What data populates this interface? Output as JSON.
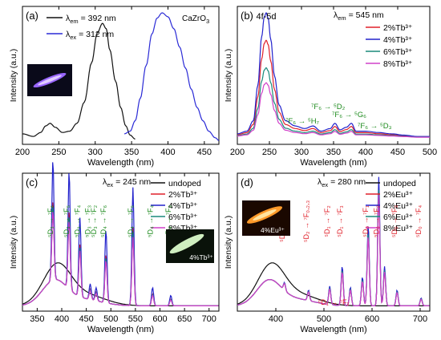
{
  "chart_data": [
    {
      "type": "line",
      "panel_label": "(a)",
      "xlabel": "Wavelength (nm)",
      "ylabel": "Intensity (a.u.)",
      "xlim": [
        200,
        470
      ],
      "xticks": [
        200,
        250,
        300,
        350,
        400,
        450
      ],
      "annotation": "CaZrO",
      "annotation_sub": "3",
      "inset_image": "rod glowing violet",
      "series": [
        {
          "name": "λem = 392 nm",
          "label_main": "λ",
          "label_sub": "em",
          "label_rest": " = 392 nm",
          "color": "#111111",
          "points": [
            [
              200,
              0.08
            ],
            [
              215,
              0.06
            ],
            [
              225,
              0.09
            ],
            [
              232,
              0.14
            ],
            [
              238,
              0.16
            ],
            [
              245,
              0.13
            ],
            [
              255,
              0.09
            ],
            [
              265,
              0.1
            ],
            [
              275,
              0.16
            ],
            [
              285,
              0.32
            ],
            [
              295,
              0.62
            ],
            [
              303,
              0.85
            ],
            [
              310,
              0.92
            ],
            [
              315,
              0.88
            ],
            [
              320,
              0.72
            ],
            [
              328,
              0.48
            ],
            [
              335,
              0.28
            ],
            [
              342,
              0.14
            ],
            [
              348,
              0.07
            ],
            [
              355,
              0.04
            ]
          ]
        },
        {
          "name": "λex = 312 nm",
          "label_main": "λ",
          "label_sub": "ex",
          "label_rest": " = 312 nm",
          "color": "#2a2ad6",
          "points": [
            [
              340,
              0.08
            ],
            [
              348,
              0.1
            ],
            [
              355,
              0.18
            ],
            [
              362,
              0.35
            ],
            [
              370,
              0.6
            ],
            [
              378,
              0.84
            ],
            [
              385,
              0.96
            ],
            [
              392,
              1.0
            ],
            [
              400,
              0.97
            ],
            [
              408,
              0.88
            ],
            [
              416,
              0.74
            ],
            [
              424,
              0.58
            ],
            [
              432,
              0.42
            ],
            [
              440,
              0.28
            ],
            [
              448,
              0.18
            ],
            [
              456,
              0.1
            ],
            [
              465,
              0.05
            ],
            [
              470,
              0.03
            ]
          ]
        }
      ]
    },
    {
      "type": "line",
      "panel_label": "(b)",
      "xlabel": "Wavelength (nm)",
      "ylabel": "Intensity (a.u.)",
      "xlim": [
        200,
        500
      ],
      "xticks": [
        200,
        250,
        300,
        350,
        400,
        450,
        500
      ],
      "legend_title_main": "λ",
      "legend_title_sub": "em",
      "legend_title_rest": " = 545 nm",
      "peak_label": "4f-5d",
      "annotations": [
        {
          "text": "⁷F₆ → ⁵D₂",
          "x": 350
        },
        {
          "text": "⁷F₆ → ⁵G₆",
          "x": 380
        },
        {
          "text": "⁷F₆ → ⁵H₇",
          "x": 320
        },
        {
          "text": "⁷F₆ → ⁵D₃",
          "x": 440
        }
      ],
      "series": [
        {
          "name": "2%Tb³⁺",
          "color": "#e0202a",
          "scale": 0.78
        },
        {
          "name": "4%Tb³⁺",
          "color": "#2222cc",
          "scale": 1.0
        },
        {
          "name": "6%Tb³⁺",
          "color": "#1a8a7a",
          "scale": 0.56
        },
        {
          "name": "8%Tb³⁺",
          "color": "#d040c8",
          "scale": 0.44
        }
      ],
      "base_points": [
        [
          200,
          0.08
        ],
        [
          215,
          0.1
        ],
        [
          225,
          0.18
        ],
        [
          232,
          0.45
        ],
        [
          238,
          0.82
        ],
        [
          242,
          0.97
        ],
        [
          245,
          1.0
        ],
        [
          248,
          0.96
        ],
        [
          252,
          0.8
        ],
        [
          258,
          0.52
        ],
        [
          265,
          0.3
        ],
        [
          275,
          0.18
        ],
        [
          290,
          0.14
        ],
        [
          305,
          0.12
        ],
        [
          318,
          0.14
        ],
        [
          330,
          0.1
        ],
        [
          345,
          0.12
        ],
        [
          352,
          0.16
        ],
        [
          360,
          0.11
        ],
        [
          370,
          0.13
        ],
        [
          378,
          0.16
        ],
        [
          385,
          0.1
        ],
        [
          400,
          0.1
        ],
        [
          420,
          0.09
        ],
        [
          440,
          0.08
        ],
        [
          460,
          0.07
        ],
        [
          480,
          0.06
        ],
        [
          500,
          0.06
        ]
      ]
    },
    {
      "type": "line",
      "panel_label": "(c)",
      "xlabel": "Wavelength (nm)",
      "ylabel": "Intensity (a.u.)",
      "xlim": [
        320,
        720
      ],
      "xticks": [
        350,
        400,
        450,
        500,
        550,
        600,
        650,
        700
      ],
      "legend_title_main": "λ",
      "legend_title_sub": "ex",
      "legend_title_rest": " = 245 nm",
      "inset_text": "4%Tb³⁺",
      "peak_labels": [
        {
          "text": "⁵D₃ → ⁷F₆",
          "x": 382
        },
        {
          "text": "⁵D₃ → ⁷F₅",
          "x": 415
        },
        {
          "text": "⁵D₃ → ⁷F₄",
          "x": 437
        },
        {
          "text": "⁵D₃ → ⁷F₃",
          "x": 458
        },
        {
          "text": "⁵D₃ → ⁷F₂",
          "x": 470
        },
        {
          "text": "⁵D₄ → ⁷F₆",
          "x": 490
        },
        {
          "text": "⁵D₄ → ⁷F₅",
          "x": 545
        },
        {
          "text": "⁵D₄ → ⁷F₄",
          "x": 585
        },
        {
          "text": "⁵D₄ → ⁷F₃",
          "x": 622
        }
      ],
      "series": [
        {
          "name": "undoped",
          "color": "#111111",
          "kind": "broad"
        },
        {
          "name": "2%Tb³⁺",
          "color": "#e0202a",
          "scale": 0.66
        },
        {
          "name": "4%Tb³⁺",
          "color": "#2222cc",
          "scale": 1.0
        },
        {
          "name": "6%Tb³⁺",
          "color": "#1a8a7a",
          "scale": 0.62
        },
        {
          "name": "8%Tb³⁺",
          "color": "#d040c8",
          "scale": 0.58
        }
      ],
      "peaks": [
        [
          382,
          0.92
        ],
        [
          415,
          0.9
        ],
        [
          437,
          0.6
        ],
        [
          458,
          0.12
        ],
        [
          470,
          0.1
        ],
        [
          490,
          0.56
        ],
        [
          545,
          0.9
        ],
        [
          585,
          0.14
        ],
        [
          622,
          0.08
        ]
      ]
    },
    {
      "type": "line",
      "panel_label": "(d)",
      "xlabel": "Wavelength (nm)",
      "ylabel": "Intensity (a.u.)",
      "xlim": [
        320,
        720
      ],
      "xticks": [
        400,
        500,
        600,
        700
      ],
      "legend_title_main": "λ",
      "legend_title_sub": "ex",
      "legend_title_rest": " = 280 nm",
      "inset_text": "4%Eu³⁺",
      "peak_labels": [
        {
          "text": "⁵D₃ → ⁷F₁,₂,₄",
          "x": 418
        },
        {
          "text": "⁵D₂ → ⁷F₀,₂,₃",
          "x": 468
        },
        {
          "text": "⁵D₁ → ⁷F₂",
          "x": 512
        },
        {
          "text": "⁵D₁ → ⁷F₃",
          "x": 538
        },
        {
          "text": "⁵D₀ → ⁷F₁",
          "x": 592
        },
        {
          "text": "⁵D₀ → ⁷F₂",
          "x": 614
        },
        {
          "text": "⁵D₀ → ⁷F₃",
          "x": 652
        },
        {
          "text": "⁵D₀ → ⁷F₄",
          "x": 702
        }
      ],
      "extra_label": "⁵D₁ → ⁷F₁",
      "series": [
        {
          "name": "undoped",
          "color": "#111111",
          "kind": "broad"
        },
        {
          "name": "2%Eu³⁺",
          "color": "#e0202a",
          "scale": 0.88
        },
        {
          "name": "4%Eu³⁺",
          "color": "#2222cc",
          "scale": 1.0
        },
        {
          "name": "6%Eu³⁺",
          "color": "#1a8a7a",
          "scale": 0.9
        },
        {
          "name": "8%Eu³⁺",
          "color": "#d040c8",
          "scale": 0.86
        }
      ],
      "peaks": [
        [
          418,
          0.06
        ],
        [
          468,
          0.08
        ],
        [
          512,
          0.14
        ],
        [
          538,
          0.3
        ],
        [
          555,
          0.14
        ],
        [
          580,
          0.22
        ],
        [
          592,
          0.62
        ],
        [
          614,
          0.98
        ],
        [
          626,
          0.3
        ],
        [
          652,
          0.12
        ],
        [
          702,
          0.06
        ]
      ]
    }
  ]
}
